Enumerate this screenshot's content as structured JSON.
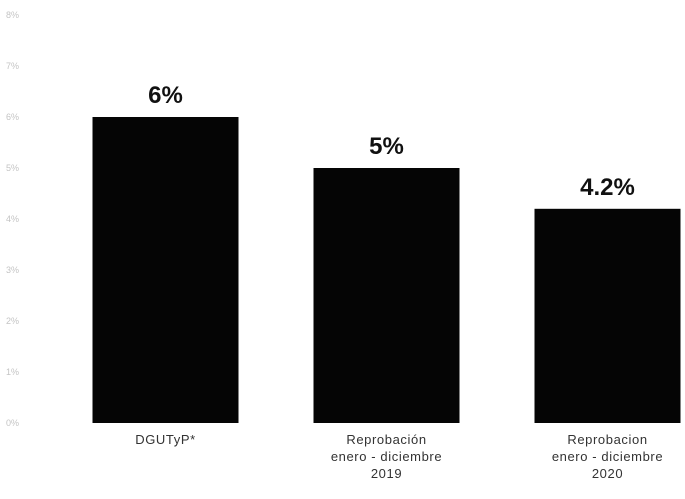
{
  "chart_data": {
    "type": "bar",
    "categories": [
      [
        "DGUTyP*"
      ],
      [
        "Reprobación",
        "enero - diciembre",
        "2019"
      ],
      [
        "Reprobacion",
        "enero - diciembre",
        "2020"
      ]
    ],
    "values": [
      6,
      5,
      4.2
    ],
    "data_labels": [
      "6%",
      "5%",
      "4.2%"
    ],
    "ylim": [
      0,
      8
    ],
    "yticks": [
      0,
      1,
      2,
      3,
      4,
      5,
      6,
      7,
      8
    ],
    "ytick_labels": [
      "0%",
      "1%",
      "2%",
      "3%",
      "4%",
      "5%",
      "6%",
      "7%",
      "8%"
    ],
    "title": "",
    "xlabel": "",
    "ylabel": "",
    "grid": false,
    "bar_color": "#050505"
  }
}
